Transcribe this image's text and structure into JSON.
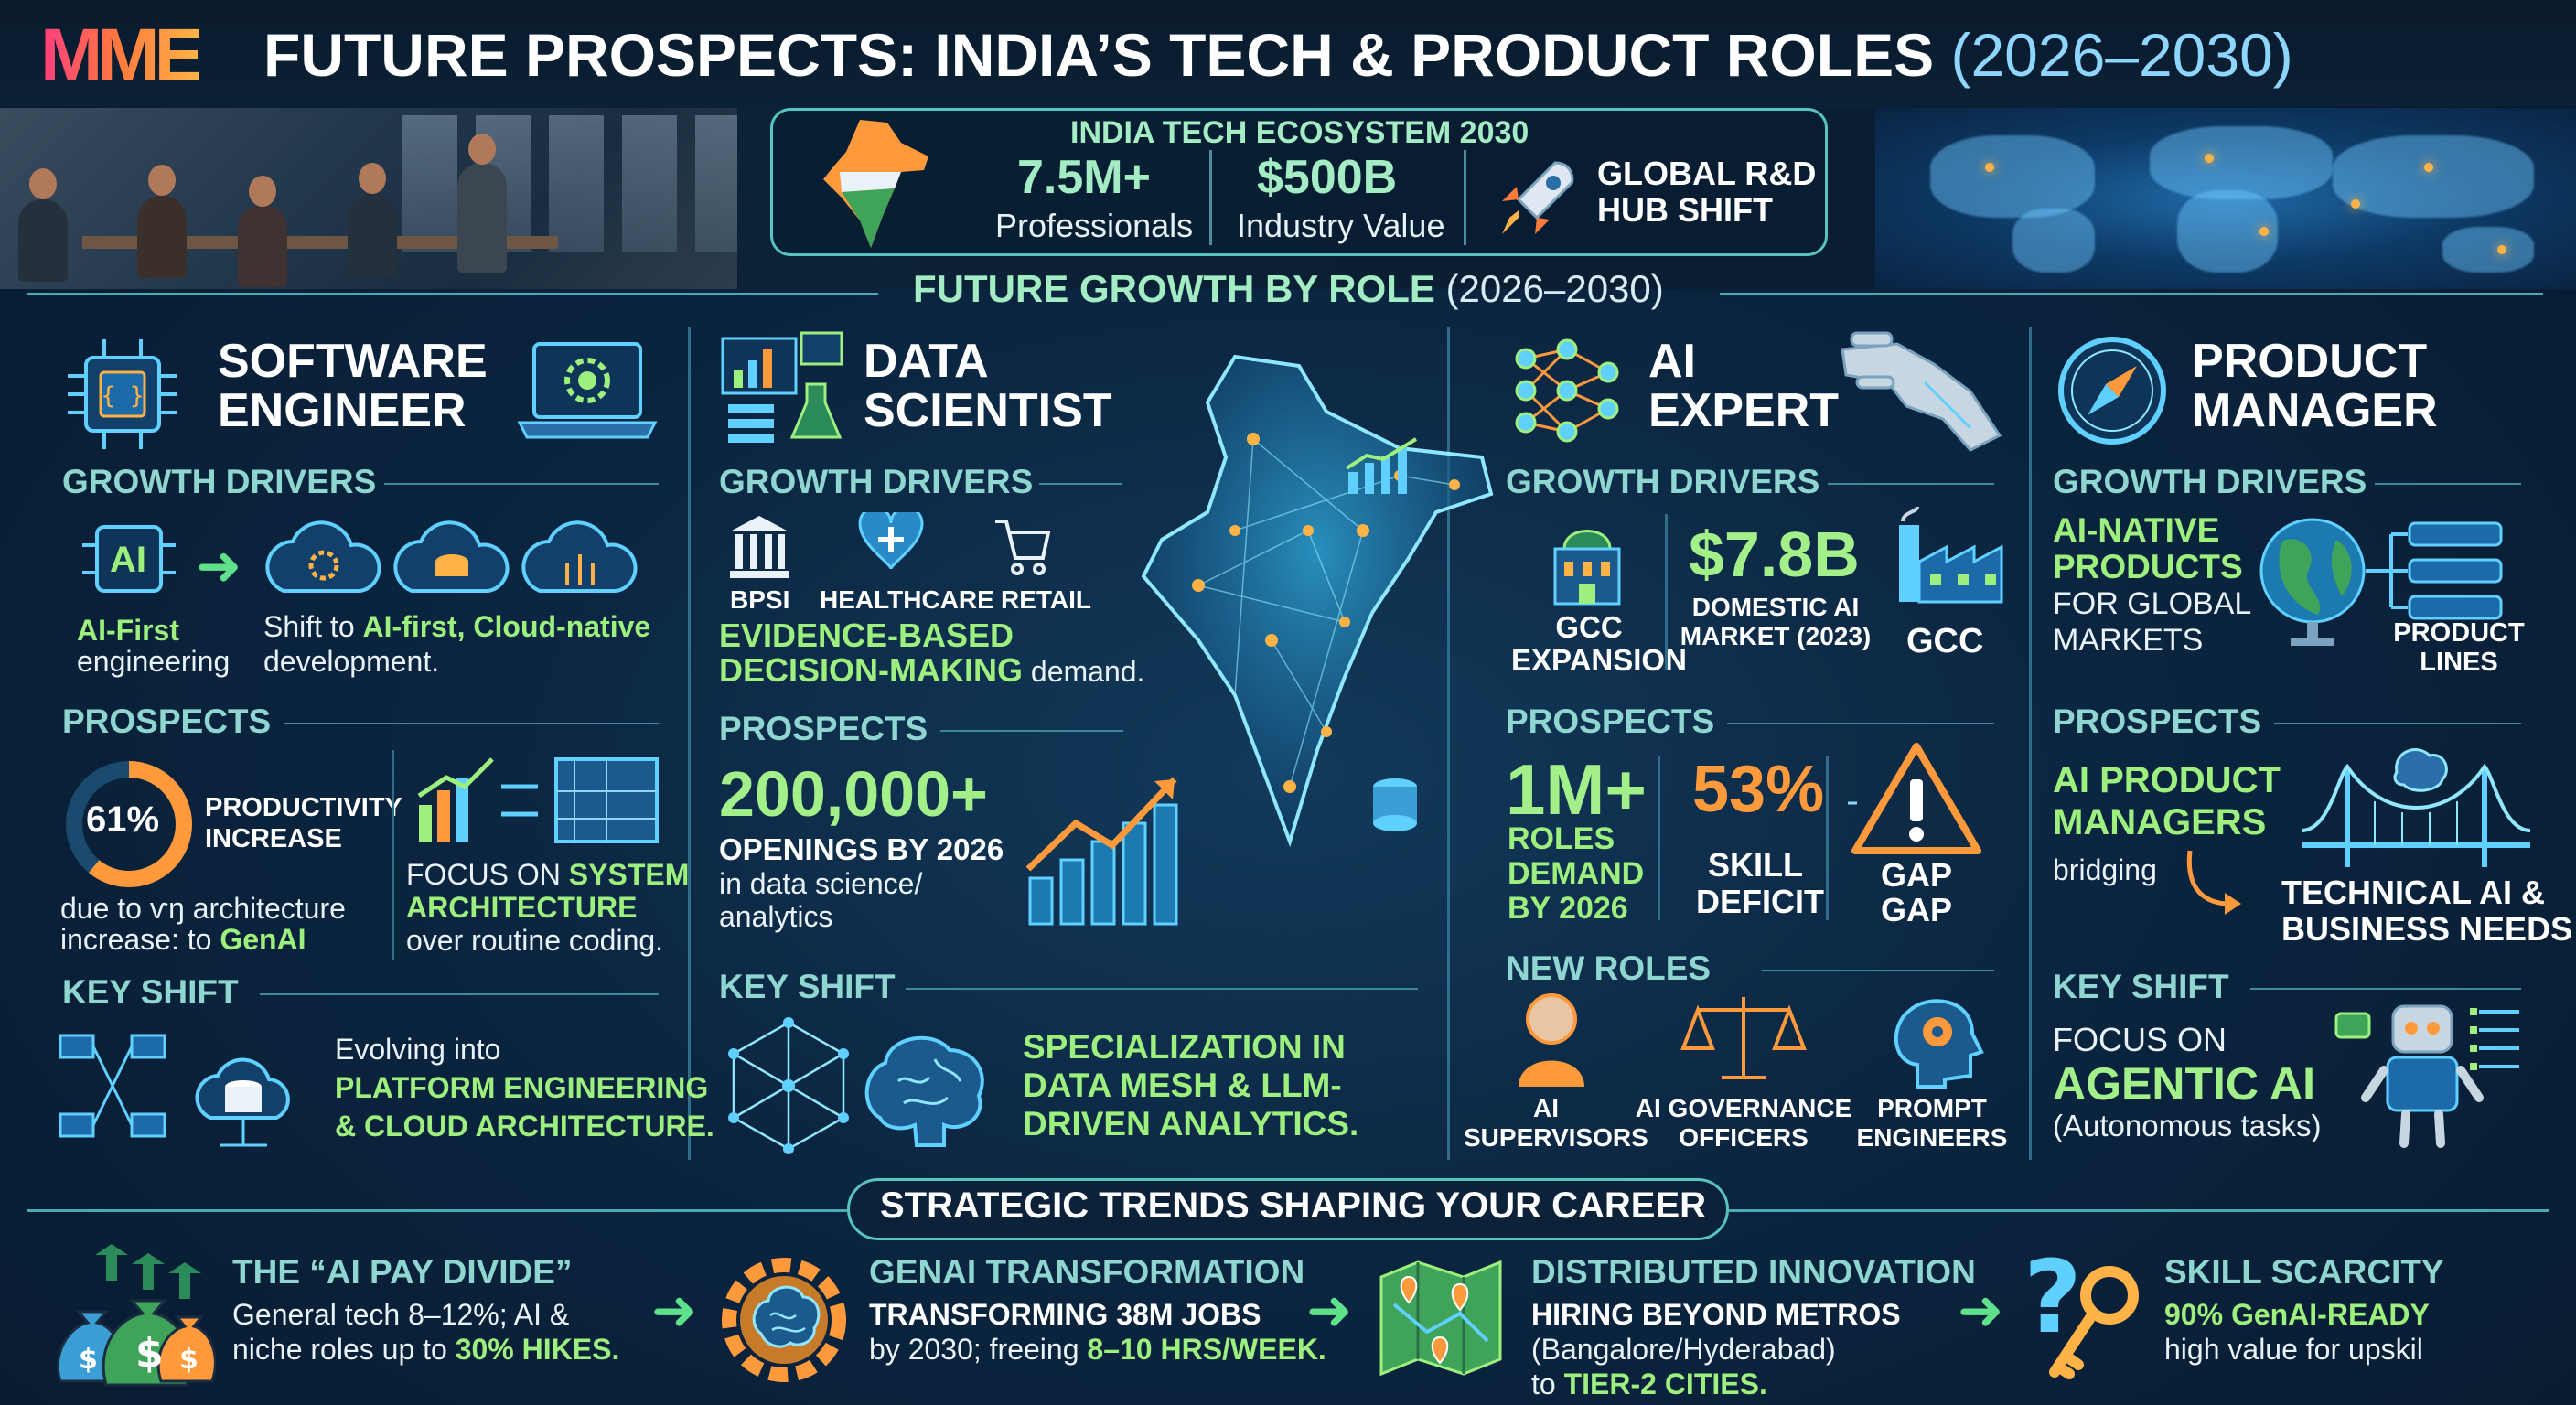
{
  "header": {
    "logo": "MME",
    "title": "FUTURE PROSPECTS: INDIA’S TECH & PRODUCT ROLES",
    "years": "(2026–2030)"
  },
  "ecosystem": {
    "title": "INDIA TECH ECOSYSTEM 2030",
    "professionals_value": "7.5M+",
    "professionals_label": "Professionals",
    "industry_value": "$500B",
    "industry_label": "Industry Value",
    "global_line1": "GLOBAL R&D",
    "global_line2": "HUB SHIFT"
  },
  "section": {
    "label": "FUTURE GROWTH BY ROLE",
    "years": "(2026–2030)"
  },
  "software_engineer": {
    "title_line1": "SOFTWARE",
    "title_line2": "ENGINEER",
    "growth_drivers": "GROWTH DRIVERS",
    "ai_badge": "AI",
    "ai_first": "AI-First",
    "engineering": "engineering",
    "shift_prefix": "Shift to ",
    "shift_highlight": "AI-first, Cloud-native",
    "shift_suffix": "development.",
    "prospects": "PROSPECTS",
    "productivity_value": "61%",
    "productivity_fraction": 0.61,
    "productivity_line1": "PRODUCTIVITY",
    "productivity_line2": "INCREASE",
    "due_line1": "due to ѵŋ architecture",
    "due_line2_prefix": "increase: to ",
    "due_line2_highlight": "GenAI",
    "focus_prefix": "FOCUS ON ",
    "focus_highlight1": "SYSTEM",
    "focus_highlight2": "ARCHITECTURE",
    "focus_suffix": "over routine coding.",
    "key_shift": "KEY SHIFT",
    "evolving": "Evolving into",
    "platform": "PLATFORM ENGINEERING",
    "cloud": "& CLOUD ARCHITECTURE."
  },
  "data_scientist": {
    "title_line1": "DATA",
    "title_line2": "SCIENTIST",
    "growth_drivers": "GROWTH DRIVERS",
    "bpsi": "BPSI",
    "healthcare": "HEALTHCARE",
    "retail": "RETAIL",
    "evidence_line1": "EVIDENCE-BASED",
    "evidence_line2": "DECISION-MAKING",
    "evidence_suffix": " demand.",
    "prospects": "PROSPECTS",
    "openings_value": "200,000+",
    "openings_label": "OPENINGS BY 2026",
    "openings_sub1": "in data science/",
    "openings_sub2": "analytics",
    "key_shift": "KEY SHIFT",
    "spec_line1": "SPECIALIZATION IN",
    "spec_line2": "DATA MESH & LLM-",
    "spec_line3": "DRIVEN ANALYTICS."
  },
  "ai_expert": {
    "title_line1": "AI",
    "title_line2": "EXPERT",
    "growth_drivers": "GROWTH DRIVERS",
    "gcc_expansion_line1": "GCC",
    "gcc_expansion_line2": "EXPANSION",
    "market_value": "$7.8B",
    "market_line1": "DOMESTIC AI",
    "market_line2": "MARKET (2023)",
    "gcc": "GCC",
    "prospects": "PROSPECTS",
    "roles_value": "1M+",
    "roles_line1": "ROLES",
    "roles_line2": "DEMAND",
    "roles_line3": "BY 2026",
    "deficit_value": "53%",
    "deficit_line1": "SKILL",
    "deficit_line2": "DEFICIT",
    "gap_line1": "GAP",
    "gap_line2": "GAP",
    "new_roles": "NEW ROLES",
    "role1_line1": "AI",
    "role1_line2": "SUPERVISORS",
    "role2_line1": "AI GOVERNANCE",
    "role2_line2": "OFFICERS",
    "role3_line1": "PROMPT",
    "role3_line2": "ENGINEERS"
  },
  "product_manager": {
    "title_line1": "PRODUCT",
    "title_line2": "MANAGER",
    "growth_drivers": "GROWTH DRIVERS",
    "native_line1": "AI-NATIVE",
    "native_line2": "PRODUCTS",
    "native_line3": "FOR GLOBAL",
    "native_line4": "MARKETS",
    "product_lines1": "PRODUCT",
    "product_lines2": "LINES",
    "prospects": "PROSPECTS",
    "apm_line1": "AI PRODUCT",
    "apm_line2": "MANAGERS",
    "bridging": "bridging",
    "tech_line1": "TECHNICAL AI &",
    "tech_line2": "BUSINESS NEEDS",
    "key_shift": "KEY SHIFT",
    "focus": "FOCUS ON",
    "agentic": "AGENTIC AI",
    "autonomous": "(Autonomous tasks)"
  },
  "trends": {
    "title": "STRATEGIC TRENDS SHAPING YOUR CAREER",
    "t1_head": "THE “AI PAY DIVIDE”",
    "t1_line1": "General tech 8–12%; AI &",
    "t1_line2_prefix": "niche roles up to ",
    "t1_line2_highlight": "30% HIKES.",
    "t2_head": "GENAI TRANSFORMATION",
    "t2_line1_highlight": "TRANSFORMING 38M JOBS",
    "t2_line2_prefix": "by 2030; freeing ",
    "t2_line2_highlight": "8–10 HRS/WEEK.",
    "t3_head": "DISTRIBUTED INNOVATION",
    "t3_line1_highlight": "HIRING BEYOND METROS",
    "t3_line2": "(Bangalore/Hyderabad)",
    "t3_line3_prefix": "to ",
    "t3_line3_highlight": "TIER-2 CITIES.",
    "t4_head": "SKILL SCARCITY",
    "t4_line1_highlight": "90% GenAI-READY",
    "t4_line2": "high value for upskil"
  },
  "colors": {
    "accent_green": "#9ef07e",
    "accent_teal": "#8fd6d0",
    "accent_orange": "#ff9a3c",
    "background": "#0b2540"
  },
  "icons": [
    "chip-icon",
    "laptop-gear-icon",
    "cloud-gear-icon",
    "cloud-database-icon",
    "bar-chart-icon",
    "flask-icon",
    "bank-icon",
    "health-shield-icon",
    "cart-icon",
    "network-icon",
    "brain-icon",
    "neural-net-icon",
    "robot-hand-icon",
    "building-icon",
    "factory-icon",
    "warning-icon",
    "person-icon",
    "scales-icon",
    "head-gear-icon",
    "compass-icon",
    "globe-icon",
    "stack-icon",
    "bridge-icon",
    "robot-icon",
    "money-bags-icon",
    "map-pin-icon",
    "key-question-icon",
    "rocket-icon",
    "india-map-icon",
    "world-map"
  ]
}
